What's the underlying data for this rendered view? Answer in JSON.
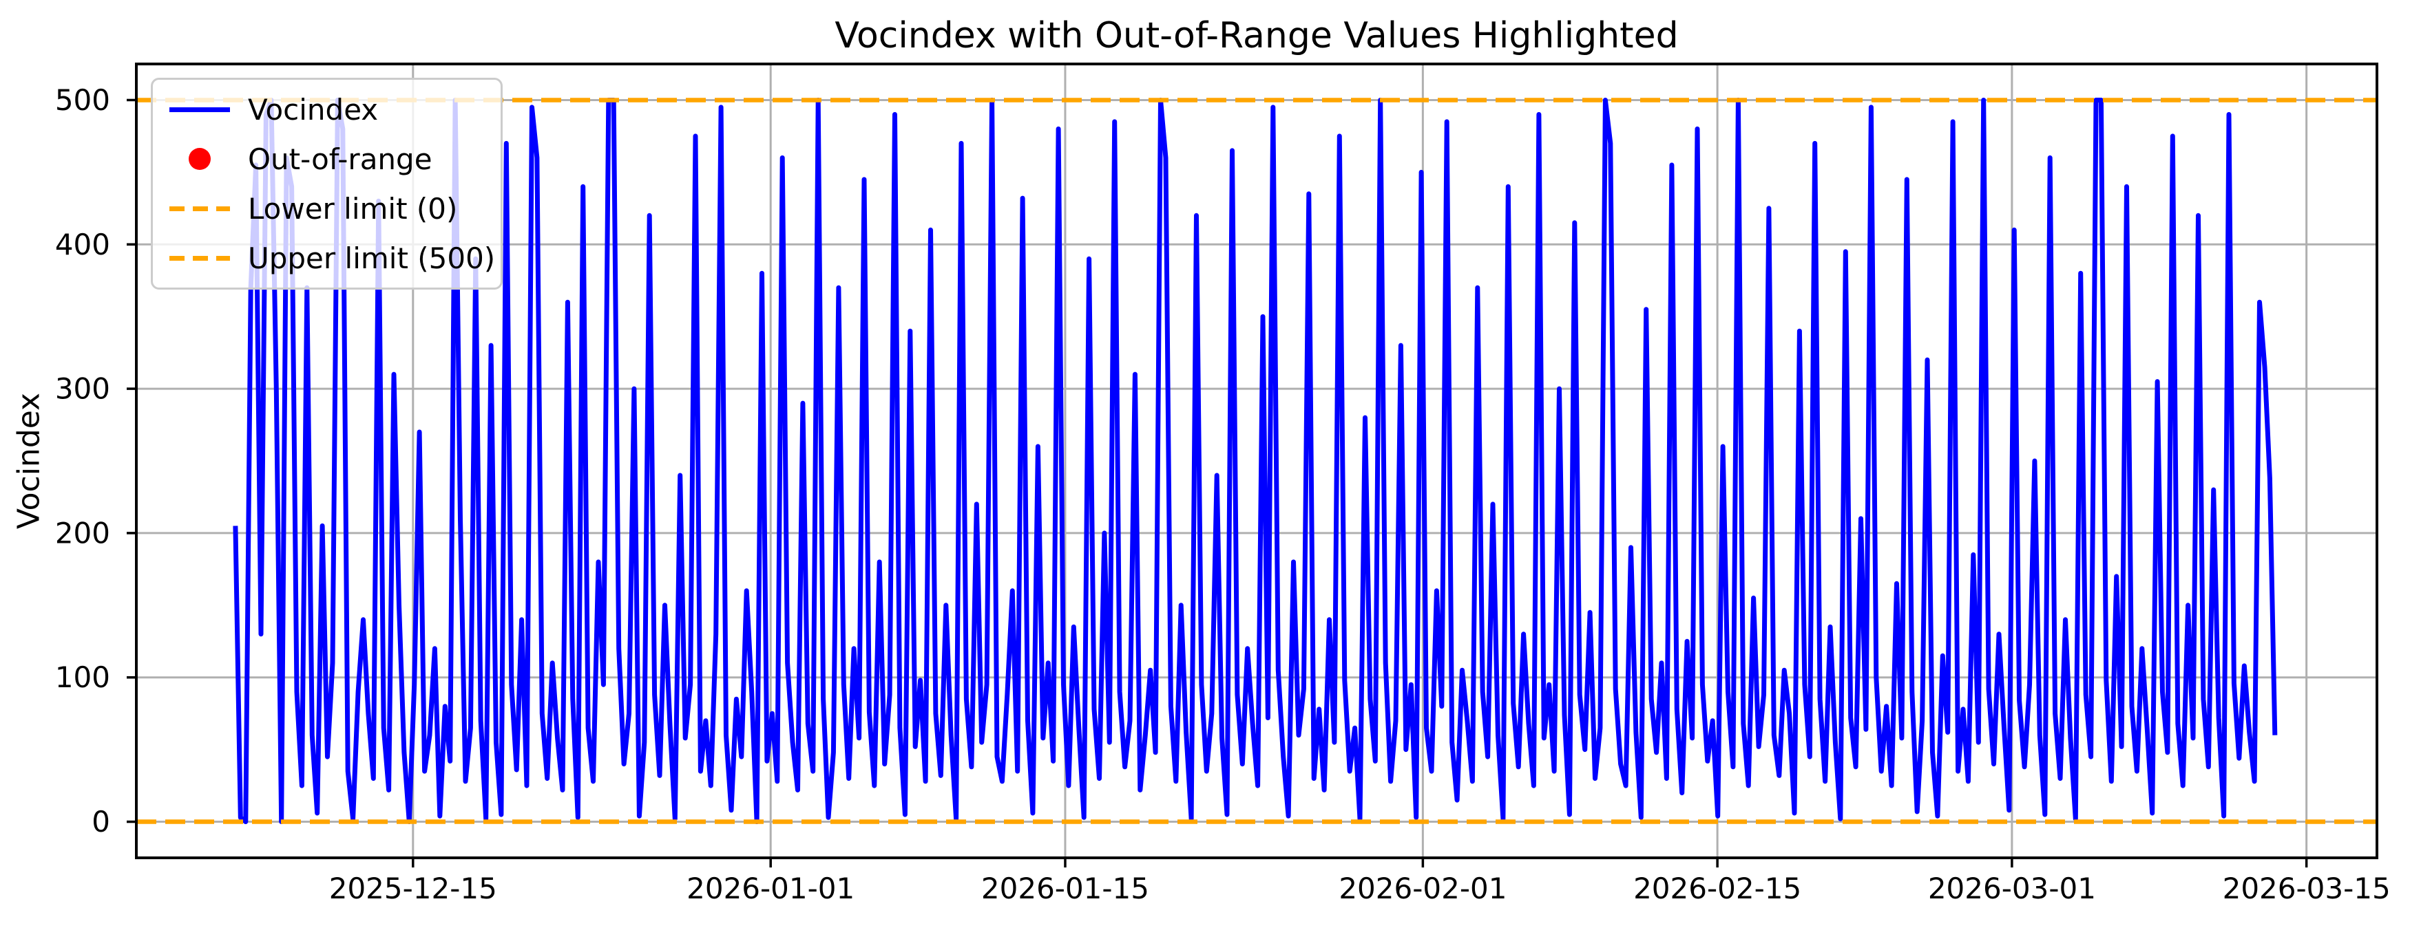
{
  "figure": {
    "title": "Vocindex with Out-of-Range Values Highlighted",
    "background": "#ffffff"
  },
  "chart_data": {
    "type": "line",
    "title": "Vocindex with Out-of-Range Values Highlighted",
    "xlabel": "",
    "ylabel": "Vocindex",
    "grid": true,
    "grid_color": "#b0b0b0",
    "ylim": [
      -25,
      525
    ],
    "y_ticks": [
      0,
      100,
      200,
      300,
      400,
      500
    ],
    "x_axis": {
      "origin_date": "2025-12-01",
      "xlim_days": [
        0.85,
        107.35
      ],
      "data_range_days": [
        5.56,
        102.5
      ],
      "ticks": [
        {
          "label": "2025-12-15",
          "day": 14
        },
        {
          "label": "2026-01-01",
          "day": 31
        },
        {
          "label": "2026-01-15",
          "day": 45
        },
        {
          "label": "2026-02-01",
          "day": 62
        },
        {
          "label": "2026-02-15",
          "day": 76
        },
        {
          "label": "2026-03-01",
          "day": 90
        },
        {
          "label": "2026-03-15",
          "day": 104
        }
      ]
    },
    "series": [
      {
        "name": "Vocindex",
        "color": "#0000ff",
        "linewidth": 7,
        "values": [
          205,
          3,
          0,
          370,
          455,
          130,
          490,
          500,
          300,
          0,
          460,
          440,
          90,
          25,
          370,
          60,
          6,
          205,
          45,
          110,
          500,
          480,
          35,
          2,
          90,
          140,
          75,
          30,
          430,
          65,
          22,
          310,
          150,
          48,
          0,
          95,
          270,
          35,
          60,
          120,
          4,
          80,
          42,
          500,
          210,
          28,
          65,
          390,
          70,
          2,
          330,
          55,
          5,
          470,
          95,
          36,
          140,
          25,
          495,
          460,
          75,
          30,
          110,
          58,
          22,
          360,
          85,
          3,
          440,
          65,
          28,
          180,
          95,
          500,
          500,
          120,
          40,
          75,
          300,
          4,
          55,
          420,
          88,
          32,
          150,
          68,
          2,
          240,
          58,
          95,
          475,
          35,
          70,
          25,
          130,
          495,
          60,
          8,
          85,
          45,
          160,
          90,
          0,
          380,
          42,
          75,
          28,
          460,
          110,
          55,
          22,
          290,
          68,
          35,
          500,
          85,
          3,
          48,
          370,
          95,
          30,
          120,
          58,
          445,
          76,
          25,
          180,
          40,
          88,
          490,
          65,
          5,
          340,
          52,
          98,
          28,
          410,
          75,
          32,
          150,
          60,
          2,
          470,
          85,
          38,
          220,
          55,
          95,
          500,
          45,
          28,
          88,
          160,
          35,
          432,
          70,
          6,
          260,
          58,
          110,
          42,
          480,
          95,
          25,
          135,
          65,
          3,
          390,
          78,
          30,
          200,
          55,
          485,
          90,
          38,
          70,
          310,
          22,
          60,
          105,
          48,
          500,
          460,
          80,
          28,
          150,
          62,
          2,
          420,
          95,
          35,
          75,
          240,
          58,
          5,
          465,
          88,
          40,
          120,
          68,
          25,
          350,
          72,
          495,
          105,
          45,
          4,
          180,
          60,
          92,
          435,
          30,
          78,
          22,
          140,
          55,
          475,
          98,
          35,
          65,
          2,
          280,
          85,
          42,
          500,
          110,
          28,
          70,
          330,
          50,
          95,
          3,
          450,
          65,
          35,
          160,
          80,
          485,
          55,
          15,
          105,
          70,
          28,
          370,
          90,
          45,
          220,
          60,
          2,
          440,
          82,
          38,
          130,
          68,
          25,
          490,
          58,
          95,
          35,
          300,
          74,
          5,
          415,
          88,
          50,
          145,
          30,
          65,
          500,
          470,
          92,
          40,
          25,
          190,
          62,
          3,
          355,
          85,
          48,
          110,
          30,
          455,
          78,
          20,
          125,
          58,
          480,
          95,
          42,
          70,
          4,
          260,
          90,
          38,
          500,
          68,
          25,
          155,
          52,
          88,
          425,
          60,
          32,
          105,
          75,
          6,
          340,
          95,
          45,
          470,
          85,
          28,
          135,
          55,
          2,
          395,
          72,
          38,
          210,
          64,
          495,
          100,
          35,
          80,
          25,
          165,
          58,
          445,
          90,
          7,
          70,
          320,
          48,
          4,
          115,
          62,
          485,
          35,
          78,
          28,
          185,
          55,
          500,
          92,
          40,
          130,
          66,
          8,
          410,
          84,
          38,
          95,
          250,
          60,
          5,
          460,
          75,
          30,
          140,
          58,
          2,
          380,
          88,
          45,
          500,
          500,
          98,
          28,
          170,
          52,
          440,
          80,
          35,
          120,
          65,
          6,
          305,
          90,
          48,
          475,
          68,
          25,
          150,
          58,
          420,
          85,
          38,
          230,
          72,
          4,
          490,
          96,
          44,
          108,
          62,
          28,
          360,
          315,
          238,
          60
        ]
      }
    ],
    "out_of_range": {
      "name": "Out-of-range",
      "color": "#ff0000",
      "points": []
    },
    "limits": {
      "color": "#ffa500",
      "lower": {
        "label": "Lower limit (0)",
        "value": 0
      },
      "upper": {
        "label": "Upper limit (500)",
        "value": 500
      }
    },
    "legend": {
      "position": "upper-left",
      "entries": [
        {
          "label": "Vocindex",
          "handle": "blue-line"
        },
        {
          "label": "Out-of-range",
          "handle": "red-dot"
        },
        {
          "label": "Lower limit (0)",
          "handle": "orange-dashed"
        },
        {
          "label": "Upper limit (500)",
          "handle": "orange-dashed"
        }
      ]
    }
  }
}
